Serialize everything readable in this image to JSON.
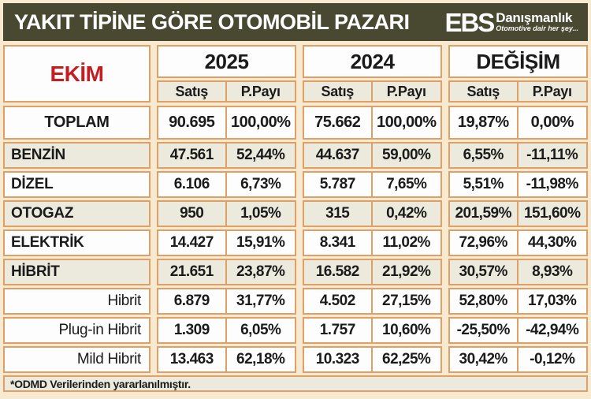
{
  "header": {
    "logo": {
      "mark": "EBS",
      "name": "Danışmanlık",
      "tagline": "Otomotive dair her şey..."
    }
  },
  "chart_data": {
    "type": "table",
    "title": "YAKIT TİPİNE GÖRE OTOMOBİL PAZARI",
    "month": "EKİM",
    "column_groups": [
      "2025",
      "2024",
      "DEĞİŞİM"
    ],
    "sub_headers": [
      "Satış",
      "P.Payı"
    ],
    "columns": [
      "2025 Satış",
      "2025 P.Payı",
      "2024 Satış",
      "2024 P.Payı",
      "DEĞİŞİM Satış",
      "DEĞİŞİM P.Payı"
    ],
    "rows": [
      {
        "label": "TOPLAM",
        "type": "total",
        "cells": [
          "90.695",
          "100,00%",
          "75.662",
          "100,00%",
          "19,87%",
          "0,00%"
        ]
      },
      {
        "label": "BENZİN",
        "type": "odd",
        "cells": [
          "47.561",
          "52,44%",
          "44.637",
          "59,00%",
          "6,55%",
          "-11,11%"
        ]
      },
      {
        "label": "DİZEL",
        "type": "even",
        "cells": [
          "6.106",
          "6,73%",
          "5.787",
          "7,65%",
          "5,51%",
          "-11,98%"
        ]
      },
      {
        "label": "OTOGAZ",
        "type": "odd",
        "cells": [
          "950",
          "1,05%",
          "315",
          "0,42%",
          "201,59%",
          "151,60%"
        ]
      },
      {
        "label": "ELEKTRİK",
        "type": "even",
        "cells": [
          "14.427",
          "15,91%",
          "8.341",
          "11,02%",
          "72,96%",
          "44,30%"
        ]
      },
      {
        "label": "HİBRİT",
        "type": "odd",
        "cells": [
          "21.651",
          "23,87%",
          "16.582",
          "21,92%",
          "30,57%",
          "8,93%"
        ]
      },
      {
        "label": "Hibrit",
        "type": "sub",
        "cells": [
          "6.879",
          "31,77%",
          "4.502",
          "27,15%",
          "52,80%",
          "17,03%"
        ]
      },
      {
        "label": "Plug-in Hibrit",
        "type": "sub",
        "cells": [
          "1.309",
          "6,05%",
          "1.757",
          "10,60%",
          "-25,50%",
          "-42,94%"
        ]
      },
      {
        "label": "Mild Hibrit",
        "type": "sub",
        "cells": [
          "13.463",
          "62,18%",
          "10.323",
          "62,25%",
          "30,42%",
          "-0,12%"
        ]
      }
    ],
    "footnote": "*ODMD Verilerinden yararlanılmıştır."
  },
  "colors": {
    "header_bg": "#494932",
    "border": "#dfa068",
    "row_beige": "#ece9dd",
    "row_white": "#fdfdfd",
    "page_bg": "#f8e9d1",
    "accent_red": "#c41e22"
  }
}
